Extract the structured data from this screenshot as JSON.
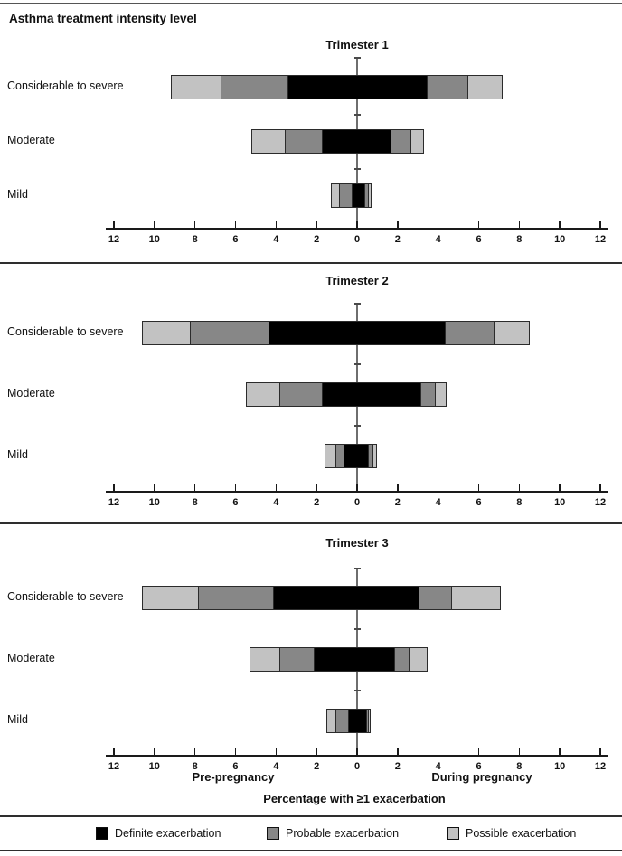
{
  "header": {
    "title": "Asthma treatment intensity level"
  },
  "axis": {
    "tick_values": [
      12,
      10,
      8,
      6,
      4,
      2,
      0,
      2,
      4,
      6,
      8,
      10,
      12
    ],
    "left_side_label": "Pre-pregnancy",
    "right_side_label": "During pregnancy",
    "axis_title": "Percentage with ≥1 exacerbation"
  },
  "legend": {
    "items": [
      {
        "label": "Definite exacerbation",
        "color": "#000000"
      },
      {
        "label": "Probable exacerbation",
        "color": "#878787"
      },
      {
        "label": "Possible exacerbation",
        "color": "#c2c2c2"
      }
    ]
  },
  "chart_data": {
    "type": "bar",
    "subtype": "diverging-stacked-horizontal",
    "xlim": [
      -12,
      12
    ],
    "x_tick_step": 2,
    "unit_label": "Percentage with ≥1 exacerbation",
    "left_direction_label": "Pre-pregnancy",
    "right_direction_label": "During pregnancy",
    "series_order": [
      "definite",
      "probable",
      "possible"
    ],
    "colors": {
      "definite": "#000000",
      "probable": "#878787",
      "possible": "#c2c2c2"
    },
    "panels": [
      {
        "title": "Trimester 1",
        "rows": [
          {
            "category": "Considerable to severe",
            "pre_pregnancy": {
              "definite": 3.5,
              "probable": 3.3,
              "possible": 2.4
            },
            "during_pregnancy": {
              "definite": 3.4,
              "probable": 2.0,
              "possible": 1.8
            }
          },
          {
            "category": "Moderate",
            "pre_pregnancy": {
              "definite": 1.8,
              "probable": 1.8,
              "possible": 1.6
            },
            "during_pregnancy": {
              "definite": 1.6,
              "probable": 1.0,
              "possible": 0.7
            }
          },
          {
            "category": "Mild",
            "pre_pregnancy": {
              "definite": 0.3,
              "probable": 0.65,
              "possible": 0.35
            },
            "during_pregnancy": {
              "definite": 0.3,
              "probable": 0.2,
              "possible": 0.2
            }
          }
        ]
      },
      {
        "title": "Trimester 2",
        "rows": [
          {
            "category": "Considerable to severe",
            "pre_pregnancy": {
              "definite": 4.4,
              "probable": 3.9,
              "possible": 2.3
            },
            "during_pregnancy": {
              "definite": 4.3,
              "probable": 2.4,
              "possible": 1.8
            }
          },
          {
            "category": "Moderate",
            "pre_pregnancy": {
              "definite": 1.8,
              "probable": 2.1,
              "possible": 1.6
            },
            "during_pregnancy": {
              "definite": 3.1,
              "probable": 0.7,
              "possible": 0.6
            }
          },
          {
            "category": "Mild",
            "pre_pregnancy": {
              "definite": 0.7,
              "probable": 0.4,
              "possible": 0.5
            },
            "during_pregnancy": {
              "definite": 0.5,
              "probable": 0.2,
              "possible": 0.3
            }
          }
        ]
      },
      {
        "title": "Trimester 3",
        "rows": [
          {
            "category": "Considerable to severe",
            "pre_pregnancy": {
              "definite": 4.2,
              "probable": 3.7,
              "possible": 2.7
            },
            "during_pregnancy": {
              "definite": 3.0,
              "probable": 1.6,
              "possible": 2.5
            }
          },
          {
            "category": "Moderate",
            "pre_pregnancy": {
              "definite": 2.2,
              "probable": 1.7,
              "possible": 1.4
            },
            "during_pregnancy": {
              "definite": 1.8,
              "probable": 0.7,
              "possible": 1.0
            }
          },
          {
            "category": "Mild",
            "pre_pregnancy": {
              "definite": 0.5,
              "probable": 0.6,
              "possible": 0.4
            },
            "during_pregnancy": {
              "definite": 0.4,
              "probable": 0.1,
              "possible": 0.15
            }
          }
        ]
      }
    ]
  }
}
